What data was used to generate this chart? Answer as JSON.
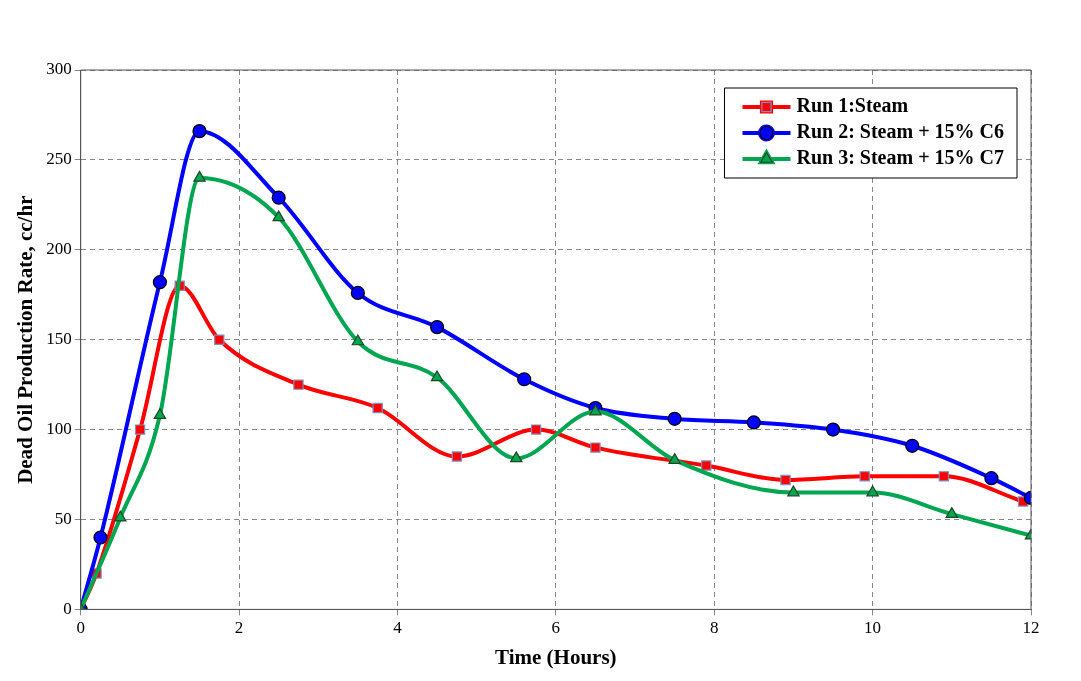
{
  "chart_data": {
    "type": "line",
    "xlabel": "Time (Hours)",
    "ylabel": "Dead Oil Production Rate, cc/hr",
    "xlim": [
      0,
      12
    ],
    "xticks": [
      0,
      2,
      4,
      6,
      8,
      10,
      12
    ],
    "ylim": [
      0,
      300
    ],
    "yticks": [
      0,
      50,
      100,
      150,
      200,
      250,
      300
    ],
    "grid": true,
    "legend": "top right",
    "line_style": "solid",
    "series": [
      {
        "name": "Run 1:Steam",
        "color": "#ff0000",
        "marker": "square",
        "x": [
          0,
          0.2,
          0.75,
          1.25,
          1.75,
          2.75,
          3.75,
          4.75,
          5.75,
          6.5,
          7.9,
          8.9,
          9.9,
          10.9,
          11.9
        ],
        "values": [
          0,
          20,
          100,
          180,
          150,
          125,
          112,
          85,
          100,
          90,
          80,
          72,
          74,
          74,
          60
        ]
      },
      {
        "name": "Run 2: Steam + 15% C6",
        "color": "#0000ff",
        "marker": "circle",
        "x": [
          0,
          0.25,
          1,
          1.5,
          2.5,
          3.5,
          4.5,
          5.6,
          6.5,
          7.5,
          8.5,
          9.5,
          10.5,
          11.5,
          12
        ],
        "values": [
          0,
          40,
          182,
          266,
          229,
          176,
          157,
          128,
          112,
          106,
          104,
          100,
          91,
          73,
          62
        ]
      },
      {
        "name": "Run 3: Steam + 15% C7",
        "color": "#00a650",
        "marker": "triangle",
        "x": [
          0,
          0.5,
          1,
          1.5,
          2.5,
          3.5,
          4.5,
          5.5,
          6.5,
          7.5,
          9,
          10,
          11,
          12
        ],
        "values": [
          0,
          51,
          108,
          240,
          218,
          149,
          129,
          84,
          110,
          83,
          65,
          65,
          53,
          41
        ]
      }
    ]
  }
}
